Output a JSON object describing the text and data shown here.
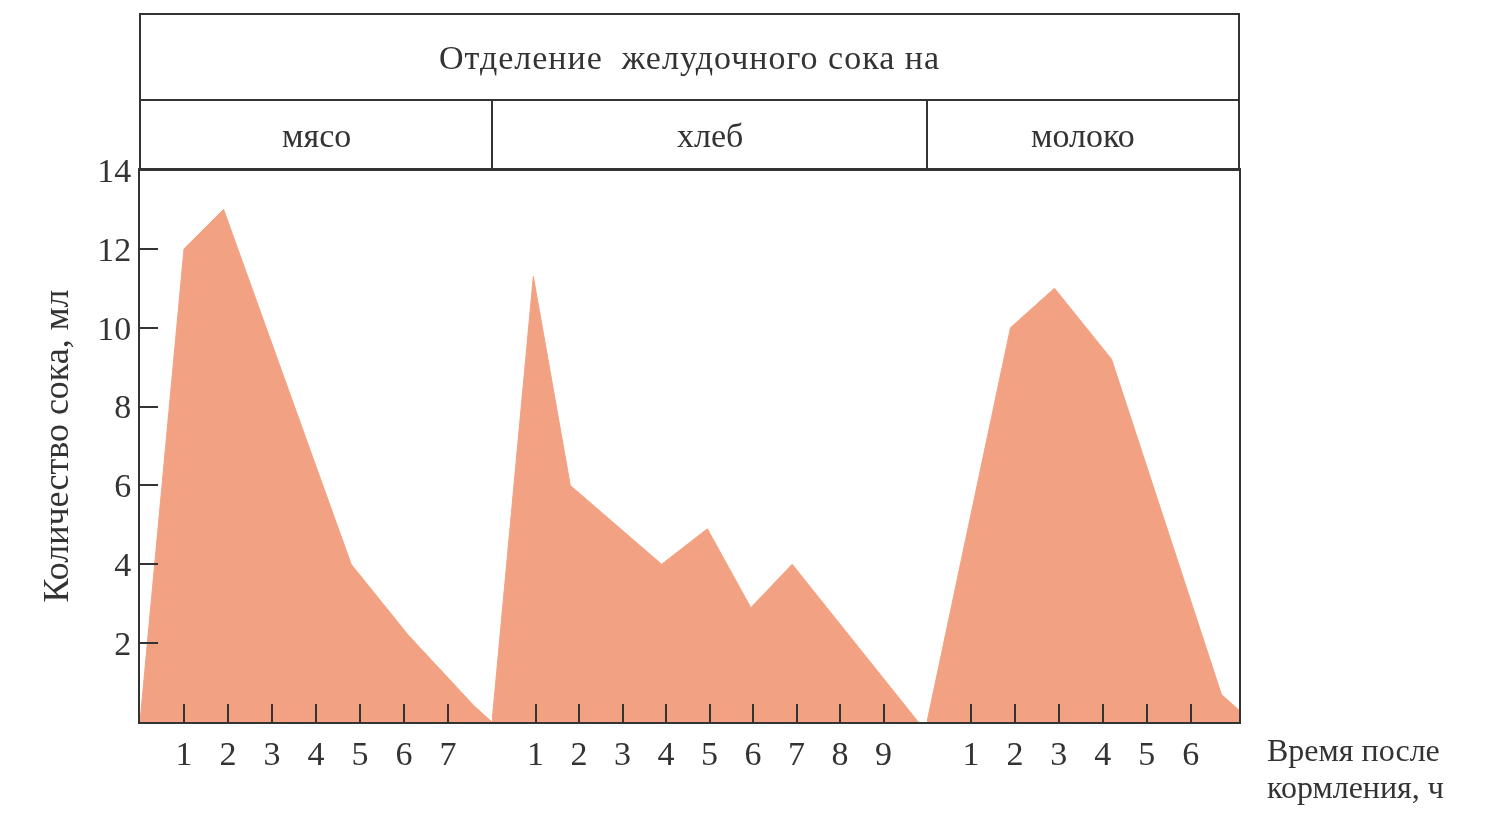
{
  "chart_data": [
    {
      "type": "area",
      "title": "мясо",
      "annotations": [
        "Отделение  желудочного сока на"
      ],
      "ylabel": "Количество сока, мл",
      "x": [
        0,
        1,
        1.9,
        4.8,
        6.1,
        7.6,
        8
      ],
      "values": [
        0,
        12,
        13,
        4,
        2.2,
        0.4,
        0
      ],
      "color": "#f2a283",
      "xlim": [
        0,
        8
      ],
      "xticks": [
        1,
        2,
        3,
        4,
        5,
        6,
        7
      ],
      "ylim": [
        0,
        14
      ],
      "yticks": [
        2,
        4,
        6,
        8,
        10,
        12,
        14
      ],
      "grid": false
    },
    {
      "type": "area",
      "title": "хлеб",
      "x": [
        0,
        0.95,
        1.8,
        3.9,
        4.95,
        5.95,
        6.9,
        9.8
      ],
      "values": [
        0,
        11.3,
        6,
        4,
        4.9,
        2.9,
        4,
        0
      ],
      "color": "#f2a283",
      "xlim": [
        0,
        10
      ],
      "xticks": [
        1,
        2,
        3,
        4,
        5,
        6,
        7,
        8,
        9
      ],
      "ylim": [
        0,
        14
      ],
      "yticks": [
        2,
        4,
        6,
        8,
        10,
        12,
        14
      ],
      "tick_labels": "x",
      "grid": false
    },
    {
      "type": "area",
      "title": "молоко",
      "xlabel": "Время после кормления, ч",
      "x": [
        0,
        1.9,
        2.9,
        4.2,
        6.7,
        7.1
      ],
      "values": [
        0,
        10,
        11,
        9.2,
        0.7,
        0.3
      ],
      "color": "#f2a283",
      "xlim": [
        0,
        7.1
      ],
      "xticks": [
        1,
        2,
        3,
        4,
        5,
        6
      ],
      "ylim": [
        0,
        14
      ],
      "yticks": [
        2,
        4,
        6,
        8,
        10,
        12,
        14
      ],
      "tick_labels": "x",
      "grid": false
    }
  ]
}
